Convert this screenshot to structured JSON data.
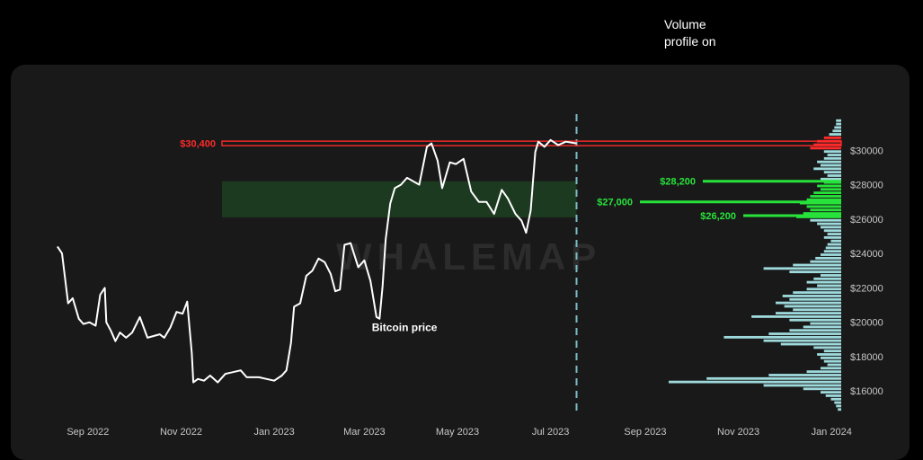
{
  "caption": "Volume\nprofile on",
  "watermark": "WHALEMAP",
  "colors": {
    "background": "#000000",
    "panel": "#191919",
    "price": "#ffffff",
    "volume": "#9ed9dc",
    "resistance": "#ff2a2a",
    "support": "#27e23a",
    "zone": "#1c3a20",
    "divider": "#7bbcc6",
    "tick_text": "#c7c7c7"
  },
  "chart_data": {
    "type": "line",
    "title": "",
    "xlabel": "",
    "ylabel": "",
    "x_ticks": [
      "Sep 2022",
      "Nov 2022",
      "Jan 2023",
      "Mar 2023",
      "May 2023",
      "Jul 2023",
      "Sep 2023",
      "Nov 2023",
      "Jan 2024"
    ],
    "y_ticks": [
      "$16000",
      "$18000",
      "$20000",
      "$22000",
      "$24000",
      "$26000",
      "$28000",
      "$30000"
    ],
    "ylim": [
      14600,
      32000
    ],
    "xlim": [
      "2022-08-05",
      "2024-01-05"
    ],
    "grid": false,
    "series": [
      {
        "name": "Bitcoin price",
        "x": [
          "2022-08-12",
          "2022-08-15",
          "2022-08-19",
          "2022-08-22",
          "2022-08-26",
          "2022-08-29",
          "2022-09-02",
          "2022-09-06",
          "2022-09-09",
          "2022-09-12",
          "2022-09-13",
          "2022-09-16",
          "2022-09-19",
          "2022-09-22",
          "2022-09-26",
          "2022-09-30",
          "2022-10-05",
          "2022-10-10",
          "2022-10-14",
          "2022-10-18",
          "2022-10-21",
          "2022-10-25",
          "2022-10-29",
          "2022-11-02",
          "2022-11-05",
          "2022-11-08",
          "2022-11-09",
          "2022-11-12",
          "2022-11-16",
          "2022-11-20",
          "2022-11-25",
          "2022-11-30",
          "2022-12-05",
          "2022-12-10",
          "2022-12-14",
          "2022-12-18",
          "2022-12-22",
          "2022-12-27",
          "2023-01-01",
          "2023-01-06",
          "2023-01-09",
          "2023-01-12",
          "2023-01-14",
          "2023-01-18",
          "2023-01-22",
          "2023-01-26",
          "2023-01-30",
          "2023-02-03",
          "2023-02-07",
          "2023-02-10",
          "2023-02-13",
          "2023-02-16",
          "2023-02-20",
          "2023-02-25",
          "2023-03-01",
          "2023-03-05",
          "2023-03-09",
          "2023-03-11",
          "2023-03-13",
          "2023-03-15",
          "2023-03-18",
          "2023-03-21",
          "2023-03-25",
          "2023-03-29",
          "2023-04-02",
          "2023-04-06",
          "2023-04-11",
          "2023-04-14",
          "2023-04-18",
          "2023-04-21",
          "2023-04-26",
          "2023-04-30",
          "2023-05-05",
          "2023-05-10",
          "2023-05-15",
          "2023-05-20",
          "2023-05-25",
          "2023-05-30",
          "2023-06-03",
          "2023-06-08",
          "2023-06-12",
          "2023-06-15",
          "2023-06-18",
          "2023-06-21",
          "2023-06-23",
          "2023-06-27",
          "2023-07-01",
          "2023-07-06",
          "2023-07-11",
          "2023-07-18"
        ],
        "y": [
          24400,
          24000,
          21100,
          21400,
          20200,
          19900,
          20000,
          19800,
          21600,
          22000,
          20000,
          19500,
          18900,
          19400,
          19100,
          19400,
          20300,
          19100,
          19200,
          19300,
          19100,
          19700,
          20600,
          20500,
          21200,
          18200,
          16500,
          16700,
          16600,
          16900,
          16500,
          17000,
          17100,
          17200,
          16800,
          16800,
          16800,
          16700,
          16600,
          16900,
          17200,
          18800,
          20900,
          21100,
          22700,
          23000,
          23700,
          23500,
          22800,
          21800,
          21900,
          24500,
          24600,
          23200,
          23600,
          22400,
          20300,
          20200,
          22100,
          24800,
          26900,
          27800,
          28000,
          28400,
          28200,
          28000,
          30200,
          30400,
          29400,
          27800,
          29300,
          29200,
          29500,
          27600,
          27000,
          27000,
          26300,
          27700,
          27200,
          26300,
          25900,
          25200,
          26500,
          29900,
          30500,
          30200,
          30600,
          30300,
          30500,
          30400
        ]
      }
    ],
    "volume_profile": {
      "name": "Volume profile",
      "bucket_size": 200,
      "buckets": [
        {
          "price": 14900,
          "volume": 0.02
        },
        {
          "price": 15100,
          "volume": 0.03
        },
        {
          "price": 15300,
          "volume": 0.04
        },
        {
          "price": 15500,
          "volume": 0.06
        },
        {
          "price": 15700,
          "volume": 0.09
        },
        {
          "price": 15900,
          "volume": 0.12
        },
        {
          "price": 16100,
          "volume": 0.22
        },
        {
          "price": 16300,
          "volume": 0.45
        },
        {
          "price": 16500,
          "volume": 1.0
        },
        {
          "price": 16700,
          "volume": 0.78
        },
        {
          "price": 16900,
          "volume": 0.42
        },
        {
          "price": 17100,
          "volume": 0.2
        },
        {
          "price": 17300,
          "volume": 0.12
        },
        {
          "price": 17500,
          "volume": 0.08
        },
        {
          "price": 17700,
          "volume": 0.1
        },
        {
          "price": 17900,
          "volume": 0.12
        },
        {
          "price": 18100,
          "volume": 0.14
        },
        {
          "price": 18300,
          "volume": 0.1
        },
        {
          "price": 18500,
          "volume": 0.16
        },
        {
          "price": 18700,
          "volume": 0.35
        },
        {
          "price": 18900,
          "volume": 0.45
        },
        {
          "price": 19100,
          "volume": 0.68
        },
        {
          "price": 19300,
          "volume": 0.42
        },
        {
          "price": 19500,
          "volume": 0.3
        },
        {
          "price": 19700,
          "volume": 0.22
        },
        {
          "price": 19900,
          "volume": 0.18
        },
        {
          "price": 20100,
          "volume": 0.3
        },
        {
          "price": 20300,
          "volume": 0.52
        },
        {
          "price": 20500,
          "volume": 0.38
        },
        {
          "price": 20700,
          "volume": 0.28
        },
        {
          "price": 20900,
          "volume": 0.33
        },
        {
          "price": 21100,
          "volume": 0.38
        },
        {
          "price": 21300,
          "volume": 0.3
        },
        {
          "price": 21500,
          "volume": 0.34
        },
        {
          "price": 21700,
          "volume": 0.28
        },
        {
          "price": 21900,
          "volume": 0.2
        },
        {
          "price": 22100,
          "volume": 0.14
        },
        {
          "price": 22300,
          "volume": 0.2
        },
        {
          "price": 22500,
          "volume": 0.16
        },
        {
          "price": 22700,
          "volume": 0.12
        },
        {
          "price": 22900,
          "volume": 0.3
        },
        {
          "price": 23100,
          "volume": 0.45
        },
        {
          "price": 23300,
          "volume": 0.28
        },
        {
          "price": 23500,
          "volume": 0.18
        },
        {
          "price": 23700,
          "volume": 0.15
        },
        {
          "price": 23900,
          "volume": 0.12
        },
        {
          "price": 24100,
          "volume": 0.1
        },
        {
          "price": 24300,
          "volume": 0.09
        },
        {
          "price": 24500,
          "volume": 0.08
        },
        {
          "price": 24700,
          "volume": 0.06
        },
        {
          "price": 24900,
          "volume": 0.1
        },
        {
          "price": 25100,
          "volume": 0.08
        },
        {
          "price": 25300,
          "volume": 0.1
        },
        {
          "price": 25500,
          "volume": 0.12
        },
        {
          "price": 25700,
          "volume": 0.14
        },
        {
          "price": 25900,
          "volume": 0.18
        },
        {
          "price": 26100,
          "volume": 0.26
        },
        {
          "price": 26300,
          "volume": 0.22
        },
        {
          "price": 26500,
          "volume": 0.18
        },
        {
          "price": 26700,
          "volume": 0.2
        },
        {
          "price": 26900,
          "volume": 0.24
        },
        {
          "price": 27100,
          "volume": 0.2
        },
        {
          "price": 27300,
          "volume": 0.18
        },
        {
          "price": 27500,
          "volume": 0.16
        },
        {
          "price": 27700,
          "volume": 0.12
        },
        {
          "price": 27900,
          "volume": 0.14
        },
        {
          "price": 28100,
          "volume": 0.1
        },
        {
          "price": 28300,
          "volume": 0.12
        },
        {
          "price": 28500,
          "volume": 0.08
        },
        {
          "price": 28700,
          "volume": 0.1
        },
        {
          "price": 28900,
          "volume": 0.16
        },
        {
          "price": 29100,
          "volume": 0.12
        },
        {
          "price": 29300,
          "volume": 0.14
        },
        {
          "price": 29500,
          "volume": 0.1
        },
        {
          "price": 29700,
          "volume": 0.08
        },
        {
          "price": 29900,
          "volume": 0.1
        },
        {
          "price": 30100,
          "volume": 0.18
        },
        {
          "price": 30300,
          "volume": 0.16
        },
        {
          "price": 30500,
          "volume": 0.14
        },
        {
          "price": 30700,
          "volume": 0.1
        },
        {
          "price": 30900,
          "volume": 0.07
        },
        {
          "price": 31100,
          "volume": 0.05
        },
        {
          "price": 31300,
          "volume": 0.04
        },
        {
          "price": 31500,
          "volume": 0.03
        },
        {
          "price": 31700,
          "volume": 0.03
        }
      ]
    },
    "annotations": {
      "price_label": {
        "text": "Bitcoin price",
        "date": "2023-03-13",
        "price": 19700
      },
      "resistance": {
        "label": "$30,400",
        "price": 30400
      },
      "support_zone": {
        "low": 26100,
        "high": 28200
      },
      "support_levels": [
        {
          "label": "$28,200",
          "price": 28200
        },
        {
          "label": "$27,000",
          "price": 27000
        },
        {
          "label": "$26,200",
          "price": 26200
        }
      ],
      "divider_date": "2023-07-18"
    }
  }
}
